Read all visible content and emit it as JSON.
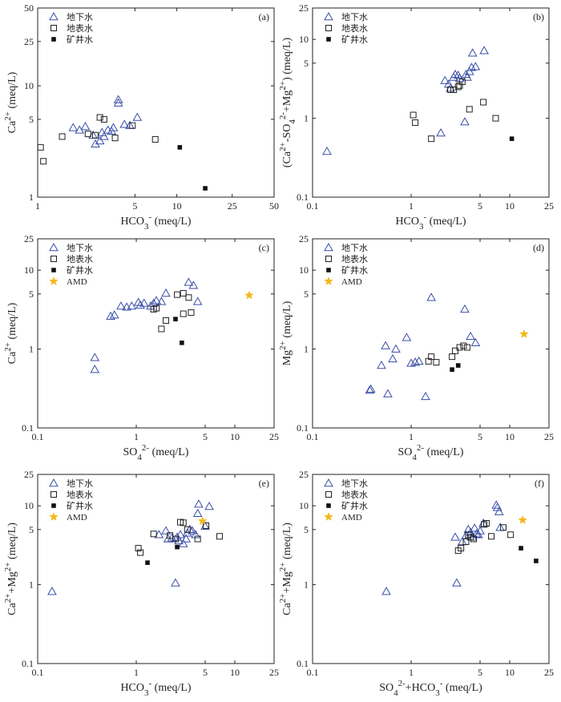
{
  "colors": {
    "groundwater": "#3a4fa8",
    "surface": "#222222",
    "mine": "#111111",
    "amd": "#f2b81c"
  },
  "legend_labels": {
    "groundwater": "地下水",
    "surface": "地表水",
    "mine": "矿井水",
    "amd": "AMD"
  },
  "chart_data": [
    {
      "panel_label": "(a)",
      "type": "scatter",
      "xscale": "log",
      "yscale": "log",
      "xlim": [
        1,
        50
      ],
      "ylim": [
        1,
        50
      ],
      "xticks": [
        "1",
        "5",
        "10",
        "25",
        "50"
      ],
      "yticks": [
        "1",
        "5",
        "10",
        "25",
        "50"
      ],
      "xlabel": "HCO3- (meq/L)",
      "ylabel": "Ca2+ (meq/L)",
      "legend": [
        "地下水",
        "地表水",
        "矿井水"
      ],
      "series": [
        {
          "name": "地下水",
          "marker": "triangle",
          "points": [
            [
              1.8,
              4.2
            ],
            [
              2.0,
              4.0
            ],
            [
              2.2,
              4.3
            ],
            [
              2.5,
              3.6
            ],
            [
              2.6,
              3.0
            ],
            [
              2.8,
              3.2
            ],
            [
              2.9,
              3.8
            ],
            [
              3.0,
              3.5
            ],
            [
              3.2,
              4.0
            ],
            [
              3.4,
              3.9
            ],
            [
              3.5,
              4.2
            ],
            [
              3.8,
              7.0
            ],
            [
              3.8,
              7.5
            ],
            [
              4.2,
              4.5
            ],
            [
              4.6,
              4.4
            ],
            [
              5.2,
              5.2
            ]
          ]
        },
        {
          "name": "地表水",
          "marker": "square",
          "points": [
            [
              1.05,
              2.8
            ],
            [
              1.1,
              2.1
            ],
            [
              1.5,
              3.5
            ],
            [
              2.3,
              3.7
            ],
            [
              2.6,
              3.6
            ],
            [
              2.8,
              5.2
            ],
            [
              3.0,
              5.0
            ],
            [
              3.6,
              3.4
            ],
            [
              4.8,
              4.4
            ],
            [
              7.0,
              3.3
            ]
          ]
        },
        {
          "name": "矿井水",
          "marker": "filled-square",
          "points": [
            [
              10.5,
              2.8
            ],
            [
              16.0,
              1.2
            ]
          ]
        }
      ]
    },
    {
      "panel_label": "(b)",
      "type": "scatter",
      "xscale": "log",
      "yscale": "log",
      "xlim": [
        0.1,
        25
      ],
      "ylim": [
        0.1,
        25
      ],
      "xticks": [
        "0.1",
        "1",
        "5",
        "10",
        "25"
      ],
      "yticks": [
        "0.1",
        "1",
        "5",
        "10",
        "25"
      ],
      "xlabel": "HCO3- (meq/L)",
      "ylabel": "(Ca2+-SO42-+Mg2+) (meq/L)",
      "legend": [
        "地下水",
        "地表水",
        "矿井水"
      ],
      "series": [
        {
          "name": "地下水",
          "marker": "triangle",
          "points": [
            [
              0.14,
              0.38
            ],
            [
              2.0,
              0.65
            ],
            [
              2.2,
              3.0
            ],
            [
              2.4,
              2.7
            ],
            [
              2.5,
              2.4
            ],
            [
              2.7,
              3.3
            ],
            [
              2.8,
              3.6
            ],
            [
              3.0,
              3.5
            ],
            [
              3.1,
              3.2
            ],
            [
              3.5,
              0.9
            ],
            [
              3.6,
              3.6
            ],
            [
              3.7,
              3.3
            ],
            [
              3.9,
              3.9
            ],
            [
              4.1,
              4.4
            ],
            [
              4.2,
              6.7
            ],
            [
              4.5,
              4.5
            ],
            [
              5.5,
              7.2
            ]
          ]
        },
        {
          "name": "地表水",
          "marker": "square",
          "points": [
            [
              1.05,
              1.1
            ],
            [
              1.1,
              0.88
            ],
            [
              1.6,
              0.55
            ],
            [
              2.5,
              2.3
            ],
            [
              2.7,
              2.3
            ],
            [
              3.0,
              2.5
            ],
            [
              3.1,
              2.6
            ],
            [
              3.3,
              2.9
            ],
            [
              3.9,
              1.3
            ],
            [
              5.4,
              1.6
            ],
            [
              7.2,
              1.0
            ]
          ]
        },
        {
          "name": "矿井水",
          "marker": "filled-square",
          "points": [
            [
              10.5,
              0.55
            ]
          ]
        }
      ]
    },
    {
      "panel_label": "(c)",
      "type": "scatter",
      "xscale": "log",
      "yscale": "log",
      "xlim": [
        0.1,
        25
      ],
      "ylim": [
        0.1,
        25
      ],
      "xticks": [
        "0.1",
        "1",
        "5",
        "10",
        "25"
      ],
      "yticks": [
        "0.1",
        "1",
        "5",
        "10",
        "25"
      ],
      "xlabel": "SO42- (meq/L)",
      "ylabel": "Ca2+ (meq/L)",
      "legend": [
        "地下水",
        "地表水",
        "矿井水",
        "AMD"
      ],
      "series": [
        {
          "name": "地下水",
          "marker": "triangle",
          "points": [
            [
              0.38,
              0.55
            ],
            [
              0.38,
              0.78
            ],
            [
              0.55,
              2.6
            ],
            [
              0.6,
              2.7
            ],
            [
              0.7,
              3.5
            ],
            [
              0.8,
              3.4
            ],
            [
              0.9,
              3.5
            ],
            [
              1.05,
              3.9
            ],
            [
              1.1,
              3.6
            ],
            [
              1.2,
              3.8
            ],
            [
              1.4,
              3.5
            ],
            [
              1.5,
              3.8
            ],
            [
              1.6,
              4.1
            ],
            [
              1.8,
              4.0
            ],
            [
              2.0,
              5.1
            ],
            [
              3.4,
              7.0
            ],
            [
              3.8,
              6.4
            ],
            [
              4.2,
              4.0
            ]
          ]
        },
        {
          "name": "地表水",
          "marker": "square",
          "points": [
            [
              1.5,
              3.2
            ],
            [
              1.6,
              3.3
            ],
            [
              1.8,
              1.8
            ],
            [
              2.0,
              2.3
            ],
            [
              2.6,
              4.9
            ],
            [
              3.0,
              5.1
            ],
            [
              3.0,
              2.8
            ],
            [
              3.4,
              4.5
            ],
            [
              3.6,
              2.9
            ]
          ]
        },
        {
          "name": "矿井水",
          "marker": "filled-square",
          "points": [
            [
              2.5,
              2.4
            ],
            [
              2.9,
              1.2
            ]
          ]
        },
        {
          "name": "AMD",
          "marker": "star",
          "points": [
            [
              14.0,
              4.8
            ]
          ]
        }
      ]
    },
    {
      "panel_label": "(d)",
      "type": "scatter",
      "xscale": "log",
      "yscale": "log",
      "xlim": [
        0.1,
        25
      ],
      "ylim": [
        0.1,
        25
      ],
      "xticks": [
        "0.1",
        "1",
        "5",
        "10",
        "25"
      ],
      "yticks": [
        "0.1",
        "1",
        "5",
        "10",
        "25"
      ],
      "xlabel": "SO42- (meq/L)",
      "ylabel": "Mg2+ (meq/L)",
      "legend": [
        "地下水",
        "地表水",
        "矿井水",
        "AMD"
      ],
      "series": [
        {
          "name": "地下水",
          "marker": "triangle",
          "points": [
            [
              0.38,
              0.3
            ],
            [
              0.39,
              0.31
            ],
            [
              0.5,
              0.62
            ],
            [
              0.55,
              1.1
            ],
            [
              0.58,
              0.27
            ],
            [
              0.65,
              0.75
            ],
            [
              0.7,
              1.0
            ],
            [
              0.9,
              1.4
            ],
            [
              1.0,
              0.66
            ],
            [
              1.1,
              0.68
            ],
            [
              1.2,
              0.7
            ],
            [
              1.4,
              0.25
            ],
            [
              1.6,
              4.5
            ],
            [
              3.5,
              3.2
            ],
            [
              4.0,
              1.45
            ],
            [
              4.5,
              1.2
            ]
          ]
        },
        {
          "name": "地表水",
          "marker": "square",
          "points": [
            [
              1.5,
              0.7
            ],
            [
              1.6,
              0.8
            ],
            [
              1.8,
              0.68
            ],
            [
              2.6,
              0.8
            ],
            [
              2.8,
              0.95
            ],
            [
              3.1,
              1.05
            ],
            [
              3.4,
              1.1
            ],
            [
              3.7,
              1.05
            ]
          ]
        },
        {
          "name": "矿井水",
          "marker": "filled-square",
          "points": [
            [
              2.6,
              0.55
            ],
            [
              3.0,
              0.62
            ]
          ]
        },
        {
          "name": "AMD",
          "marker": "star",
          "points": [
            [
              14.0,
              1.55
            ]
          ]
        }
      ]
    },
    {
      "panel_label": "(e)",
      "type": "scatter",
      "xscale": "log",
      "yscale": "log",
      "xlim": [
        0.1,
        25
      ],
      "ylim": [
        0.1,
        25
      ],
      "xticks": [
        "0.1",
        "1",
        "5",
        "10",
        "25"
      ],
      "yticks": [
        "0.1",
        "1",
        "5",
        "10",
        "25"
      ],
      "xlabel": "HCO3- (meq/L)",
      "ylabel": "Ca2++Mg2+ (meq/L)",
      "legend": [
        "地下水",
        "地表水",
        "矿井水",
        "AMD"
      ],
      "series": [
        {
          "name": "地下水",
          "marker": "triangle",
          "points": [
            [
              0.14,
              0.82
            ],
            [
              1.7,
              4.3
            ],
            [
              2.0,
              4.8
            ],
            [
              2.1,
              3.8
            ],
            [
              2.3,
              3.9
            ],
            [
              2.5,
              1.05
            ],
            [
              2.6,
              4.0
            ],
            [
              2.7,
              3.6
            ],
            [
              2.8,
              4.3
            ],
            [
              3.0,
              3.3
            ],
            [
              3.2,
              3.8
            ],
            [
              3.3,
              4.5
            ],
            [
              3.5,
              5.0
            ],
            [
              3.7,
              4.8
            ],
            [
              4.0,
              4.3
            ],
            [
              4.2,
              8.0
            ],
            [
              4.3,
              10.5
            ],
            [
              5.0,
              5.5
            ],
            [
              5.5,
              9.8
            ]
          ]
        },
        {
          "name": "地表水",
          "marker": "square",
          "points": [
            [
              1.05,
              2.9
            ],
            [
              1.1,
              2.55
            ],
            [
              1.5,
              4.4
            ],
            [
              2.2,
              4.2
            ],
            [
              2.5,
              3.8
            ],
            [
              2.8,
              6.2
            ],
            [
              3.0,
              6.1
            ],
            [
              3.3,
              5.0
            ],
            [
              4.2,
              3.8
            ],
            [
              5.1,
              5.6
            ],
            [
              7.0,
              4.1
            ]
          ]
        },
        {
          "name": "矿井水",
          "marker": "filled-square",
          "points": [
            [
              1.3,
              1.9
            ],
            [
              2.6,
              3.0
            ]
          ]
        },
        {
          "name": "AMD",
          "marker": "star",
          "points": [
            [
              4.7,
              6.4
            ]
          ]
        }
      ]
    },
    {
      "panel_label": "(f)",
      "type": "scatter",
      "xscale": "log",
      "yscale": "log",
      "xlim": [
        0.1,
        25
      ],
      "ylim": [
        0.1,
        25
      ],
      "xticks": [
        "0.1",
        "1",
        "5",
        "10",
        "25"
      ],
      "yticks": [
        "0.1",
        "1",
        "5",
        "10",
        "25"
      ],
      "xlabel": "SO42-+HCO3- (meq/L)",
      "ylabel": "Ca2++Mg2+ (meq/L)",
      "legend": [
        "地下水",
        "地表水",
        "矿井水",
        "AMD"
      ],
      "series": [
        {
          "name": "地下水",
          "marker": "triangle",
          "points": [
            [
              0.56,
              0.82
            ],
            [
              2.8,
              4.0
            ],
            [
              2.9,
              1.05
            ],
            [
              3.3,
              3.5
            ],
            [
              3.6,
              4.2
            ],
            [
              3.8,
              5.0
            ],
            [
              4.0,
              4.6
            ],
            [
              4.2,
              4.0
            ],
            [
              4.4,
              5.2
            ],
            [
              4.6,
              4.4
            ],
            [
              4.8,
              4.3
            ],
            [
              5.0,
              4.8
            ],
            [
              5.4,
              6.0
            ],
            [
              7.3,
              10.2
            ],
            [
              7.5,
              9.5
            ],
            [
              7.8,
              8.4
            ],
            [
              8.0,
              5.3
            ]
          ]
        },
        {
          "name": "地表水",
          "marker": "square",
          "points": [
            [
              3.0,
              2.7
            ],
            [
              3.2,
              2.9
            ],
            [
              3.6,
              3.5
            ],
            [
              3.8,
              4.3
            ],
            [
              4.0,
              4.0
            ],
            [
              4.3,
              3.8
            ],
            [
              5.5,
              5.8
            ],
            [
              5.8,
              6.0
            ],
            [
              6.5,
              4.1
            ],
            [
              8.6,
              5.3
            ],
            [
              10.2,
              4.3
            ]
          ]
        },
        {
          "name": "矿井水",
          "marker": "filled-square",
          "points": [
            [
              13.0,
              2.9
            ],
            [
              18.5,
              2.0
            ]
          ]
        },
        {
          "name": "AMD",
          "marker": "star",
          "points": [
            [
              13.5,
              6.6
            ]
          ]
        }
      ]
    }
  ]
}
